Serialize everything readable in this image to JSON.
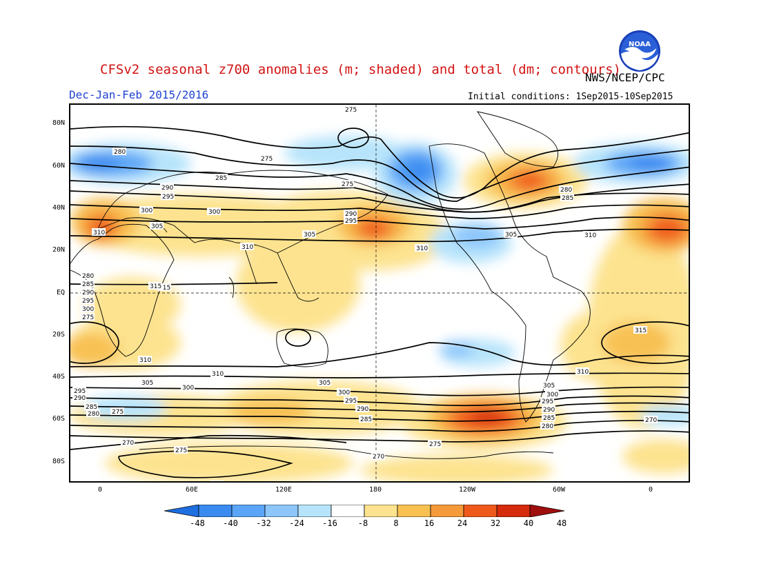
{
  "header": {
    "title": "CFSv2 seasonal z700 anomalies (m; shaded) and total (dm; contours)",
    "agency": "NWS/NCEP/CPC",
    "period": "Dec-Jan-Feb 2015/2016",
    "initial_conditions": "Initial conditions: 1Sep2015-10Sep2015",
    "logo_text": "NOAA"
  },
  "map": {
    "lat_labels": [
      "80N",
      "60N",
      "40N",
      "20N",
      "EQ",
      "20S",
      "40S",
      "60S",
      "80S"
    ],
    "lon_labels": [
      "0",
      "60E",
      "120E",
      "180",
      "120W",
      "60W",
      "0"
    ],
    "contour_labels": [
      "275",
      "280",
      "275",
      "285",
      "290",
      "295",
      "300",
      "305",
      "310",
      "315",
      "300",
      "305",
      "290",
      "295",
      "280",
      "285",
      "275",
      "310",
      "305",
      "310",
      "280",
      "285",
      "290",
      "295",
      "300",
      "275",
      "310",
      "315",
      "310",
      "315",
      "310",
      "305",
      "300",
      "295",
      "290",
      "285",
      "280",
      "275",
      "305",
      "300",
      "295",
      "290",
      "285",
      "275",
      "305",
      "300",
      "295",
      "290",
      "285",
      "280",
      "310",
      "270",
      "270",
      "275",
      "270",
      "275"
    ],
    "colors": {
      "neg48": "#1e6fe0",
      "neg40": "#3a8bf0",
      "neg32": "#5aa5f7",
      "neg24": "#8cc6fb",
      "neg16": "#b7e4fb",
      "neg8": "#ffffff",
      "pos8": "#fde38f",
      "pos16": "#f8c152",
      "pos24": "#f59a3a",
      "pos32": "#ef5a1c",
      "pos40": "#d52a0c",
      "pos48": "#a00e0e"
    }
  },
  "colorbar": {
    "labels": [
      "-48",
      "-40",
      "-32",
      "-24",
      "-16",
      "-8",
      "8",
      "16",
      "24",
      "32",
      "40",
      "48"
    ],
    "colors": [
      "#1e6fe0",
      "#3a8bf0",
      "#5aa5f7",
      "#8cc6fb",
      "#b7e4fb",
      "#ffffff",
      "#fde38f",
      "#f8c152",
      "#f59a3a",
      "#ef5a1c",
      "#d52a0c",
      "#a00e0e"
    ]
  }
}
